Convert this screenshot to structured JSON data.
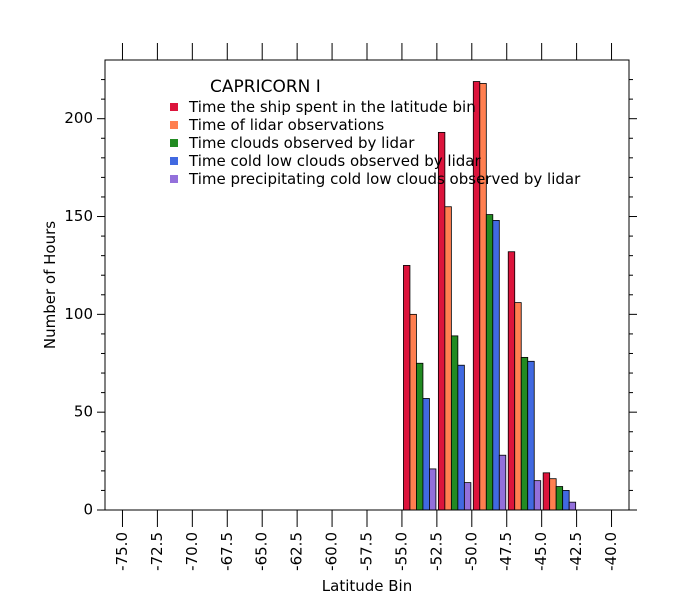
{
  "chart_data": {
    "type": "bar",
    "title": "CAPRICORN I",
    "xlabel": "Latitude Bin",
    "ylabel": "Number of Hours",
    "xlim": [
      -76.25,
      -38.75
    ],
    "ylim": [
      0,
      230
    ],
    "x_ticks": [
      "-75.0",
      "-72.5",
      "-70.0",
      "-67.5",
      "-65.0",
      "-62.5",
      "-60.0",
      "-57.5",
      "-55.0",
      "-52.5",
      "-50.0",
      "-47.5",
      "-45.0",
      "-42.5",
      "-40.0"
    ],
    "y_ticks": [
      "0",
      "50",
      "100",
      "150",
      "200"
    ],
    "grid": false,
    "legend_position": "top-left",
    "categories": [
      -53.75,
      -51.25,
      -48.75,
      -46.25,
      -43.75
    ],
    "series": [
      {
        "name": "Time the ship spent in the latitude bin",
        "color": "#dc143c",
        "values": [
          125,
          193,
          219,
          132,
          19
        ]
      },
      {
        "name": "Time of lidar observations",
        "color": "#ff7f50",
        "values": [
          100,
          155,
          218,
          106,
          16
        ]
      },
      {
        "name": "Time clouds observed by lidar",
        "color": "#228b22",
        "values": [
          75,
          89,
          151,
          78,
          12
        ]
      },
      {
        "name": "Time cold low clouds observed by lidar",
        "color": "#4169e1",
        "values": [
          57,
          74,
          148,
          76,
          10
        ]
      },
      {
        "name": "Time precipitating cold low clouds observed by lidar",
        "color": "#9370db",
        "values": [
          21,
          14,
          28,
          15,
          4
        ]
      }
    ]
  }
}
